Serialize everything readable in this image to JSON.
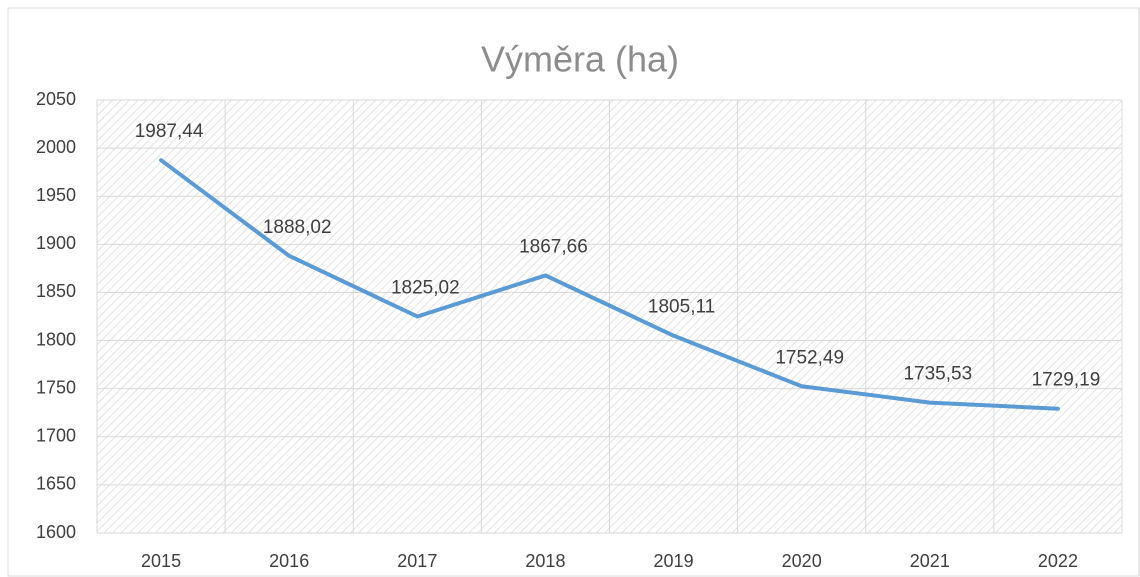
{
  "chart_data": {
    "type": "line",
    "title": "Výměra (ha)",
    "categories": [
      "2015",
      "2016",
      "2017",
      "2018",
      "2019",
      "2020",
      "2021",
      "2022"
    ],
    "values": [
      1987.44,
      1888.02,
      1825.02,
      1867.66,
      1805.11,
      1752.49,
      1735.53,
      1729.19
    ],
    "value_labels": [
      "1987,44",
      "1888,02",
      "1825,02",
      "1867,66",
      "1805,11",
      "1752,49",
      "1735,53",
      "1729,19"
    ],
    "color": "#5b9bd5",
    "ylim": [
      1600,
      2050
    ],
    "yticks": [
      1600,
      1650,
      1700,
      1750,
      1800,
      1850,
      1900,
      1950,
      2000,
      2050
    ],
    "grid": true
  }
}
